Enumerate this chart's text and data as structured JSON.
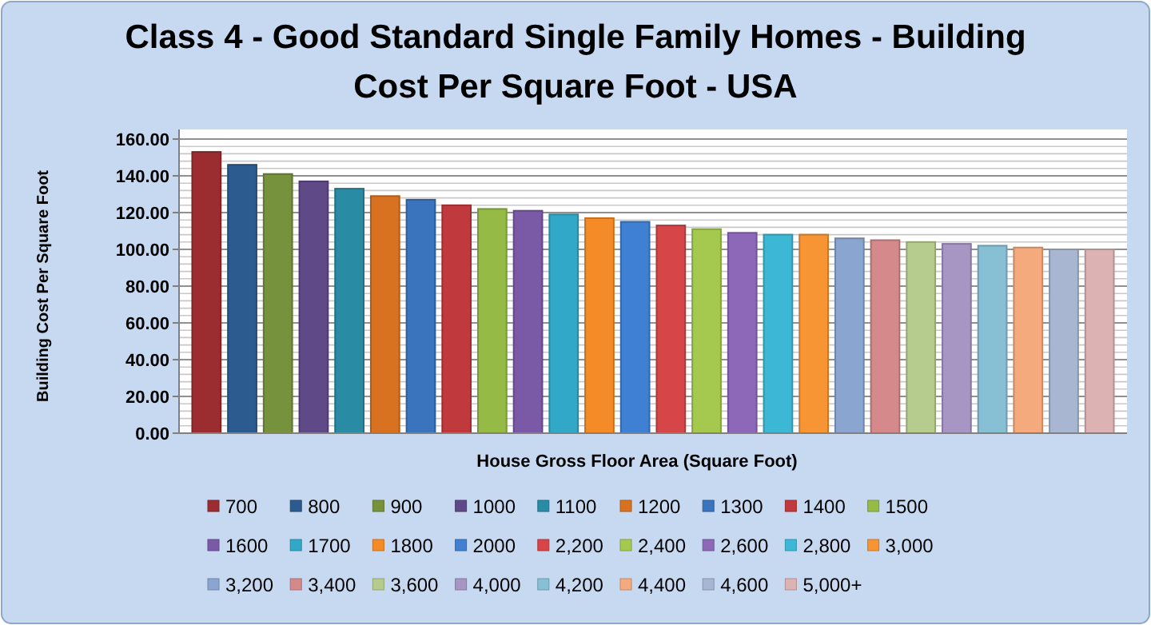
{
  "chart_data": {
    "type": "bar",
    "title": "Class 4 - Good Standard Single Family Homes  - Building Cost Per Square Foot - USA",
    "xlabel": "House Gross Floor Area (Square Foot)",
    "ylabel": "Building Cost Per Square Foot",
    "categories": [
      null,
      null,
      null,
      null,
      null,
      null,
      null,
      null,
      null,
      null,
      null,
      null,
      null,
      null,
      null,
      null,
      null,
      null,
      null,
      null,
      null,
      null,
      null,
      null,
      null,
      null
    ],
    "ylim": [
      0,
      160
    ],
    "yticks": [
      {
        "value": 0,
        "label": "0.00"
      },
      {
        "value": 20,
        "label": "20.00"
      },
      {
        "value": 40,
        "label": "40.00"
      },
      {
        "value": 60,
        "label": "60.00"
      },
      {
        "value": 80,
        "label": "80.00"
      },
      {
        "value": 100,
        "label": "100.00"
      },
      {
        "value": 120,
        "label": "120.00"
      },
      {
        "value": 140,
        "label": "140.00"
      },
      {
        "value": 160,
        "label": "160.00"
      }
    ],
    "grid": "y",
    "legend": "bottom",
    "series": [
      {
        "name": "700",
        "color": "#9b2d30",
        "values": [
          153,
          null,
          null,
          null,
          null,
          null,
          null,
          null,
          null,
          null,
          null,
          null,
          null,
          null,
          null,
          null,
          null,
          null,
          null,
          null,
          null,
          null,
          null,
          null,
          null,
          null
        ]
      },
      {
        "name": "800",
        "color": "#2c5b8f",
        "values": [
          null,
          146,
          null,
          null,
          null,
          null,
          null,
          null,
          null,
          null,
          null,
          null,
          null,
          null,
          null,
          null,
          null,
          null,
          null,
          null,
          null,
          null,
          null,
          null,
          null,
          null
        ]
      },
      {
        "name": "900",
        "color": "#76923c",
        "values": [
          null,
          null,
          141,
          null,
          null,
          null,
          null,
          null,
          null,
          null,
          null,
          null,
          null,
          null,
          null,
          null,
          null,
          null,
          null,
          null,
          null,
          null,
          null,
          null,
          null,
          null
        ]
      },
      {
        "name": "1000",
        "color": "#5f4a87",
        "values": [
          null,
          null,
          null,
          137,
          null,
          null,
          null,
          null,
          null,
          null,
          null,
          null,
          null,
          null,
          null,
          null,
          null,
          null,
          null,
          null,
          null,
          null,
          null,
          null,
          null,
          null
        ]
      },
      {
        "name": "1100",
        "color": "#2a8ba5",
        "values": [
          null,
          null,
          null,
          null,
          133,
          null,
          null,
          null,
          null,
          null,
          null,
          null,
          null,
          null,
          null,
          null,
          null,
          null,
          null,
          null,
          null,
          null,
          null,
          null,
          null,
          null
        ]
      },
      {
        "name": "1200",
        "color": "#d87220",
        "values": [
          null,
          null,
          null,
          null,
          null,
          129,
          null,
          null,
          null,
          null,
          null,
          null,
          null,
          null,
          null,
          null,
          null,
          null,
          null,
          null,
          null,
          null,
          null,
          null,
          null,
          null
        ]
      },
      {
        "name": "1300",
        "color": "#3a74bd",
        "values": [
          null,
          null,
          null,
          null,
          null,
          null,
          127,
          null,
          null,
          null,
          null,
          null,
          null,
          null,
          null,
          null,
          null,
          null,
          null,
          null,
          null,
          null,
          null,
          null,
          null,
          null
        ]
      },
      {
        "name": "1400",
        "color": "#c0393c",
        "values": [
          null,
          null,
          null,
          null,
          null,
          null,
          null,
          124,
          null,
          null,
          null,
          null,
          null,
          null,
          null,
          null,
          null,
          null,
          null,
          null,
          null,
          null,
          null,
          null,
          null,
          null
        ]
      },
      {
        "name": "1500",
        "color": "#95bb46",
        "values": [
          null,
          null,
          null,
          null,
          null,
          null,
          null,
          null,
          122,
          null,
          null,
          null,
          null,
          null,
          null,
          null,
          null,
          null,
          null,
          null,
          null,
          null,
          null,
          null,
          null,
          null
        ]
      },
      {
        "name": "1600",
        "color": "#7a5aa6",
        "values": [
          null,
          null,
          null,
          null,
          null,
          null,
          null,
          null,
          null,
          121,
          null,
          null,
          null,
          null,
          null,
          null,
          null,
          null,
          null,
          null,
          null,
          null,
          null,
          null,
          null,
          null
        ]
      },
      {
        "name": "1700",
        "color": "#31a8c8",
        "values": [
          null,
          null,
          null,
          null,
          null,
          null,
          null,
          null,
          null,
          null,
          119,
          null,
          null,
          null,
          null,
          null,
          null,
          null,
          null,
          null,
          null,
          null,
          null,
          null,
          null,
          null
        ]
      },
      {
        "name": "1800",
        "color": "#f58b26",
        "values": [
          null,
          null,
          null,
          null,
          null,
          null,
          null,
          null,
          null,
          null,
          null,
          117,
          null,
          null,
          null,
          null,
          null,
          null,
          null,
          null,
          null,
          null,
          null,
          null,
          null,
          null
        ]
      },
      {
        "name": "2000",
        "color": "#3f80d3",
        "values": [
          null,
          null,
          null,
          null,
          null,
          null,
          null,
          null,
          null,
          null,
          null,
          null,
          115,
          null,
          null,
          null,
          null,
          null,
          null,
          null,
          null,
          null,
          null,
          null,
          null,
          null
        ]
      },
      {
        "name": "2,200",
        "color": "#d64547",
        "values": [
          null,
          null,
          null,
          null,
          null,
          null,
          null,
          null,
          null,
          null,
          null,
          null,
          null,
          113,
          null,
          null,
          null,
          null,
          null,
          null,
          null,
          null,
          null,
          null,
          null,
          null
        ]
      },
      {
        "name": "2,400",
        "color": "#a5c94f",
        "values": [
          null,
          null,
          null,
          null,
          null,
          null,
          null,
          null,
          null,
          null,
          null,
          null,
          null,
          null,
          111,
          null,
          null,
          null,
          null,
          null,
          null,
          null,
          null,
          null,
          null,
          null
        ]
      },
      {
        "name": "2,600",
        "color": "#8d68b8",
        "values": [
          null,
          null,
          null,
          null,
          null,
          null,
          null,
          null,
          null,
          null,
          null,
          null,
          null,
          null,
          null,
          109,
          null,
          null,
          null,
          null,
          null,
          null,
          null,
          null,
          null,
          null
        ]
      },
      {
        "name": "2,800",
        "color": "#3cb8d6",
        "values": [
          null,
          null,
          null,
          null,
          null,
          null,
          null,
          null,
          null,
          null,
          null,
          null,
          null,
          null,
          null,
          null,
          108,
          null,
          null,
          null,
          null,
          null,
          null,
          null,
          null,
          null
        ]
      },
      {
        "name": "3,000",
        "color": "#f79534",
        "values": [
          null,
          null,
          null,
          null,
          null,
          null,
          null,
          null,
          null,
          null,
          null,
          null,
          null,
          null,
          null,
          null,
          null,
          108,
          null,
          null,
          null,
          null,
          null,
          null,
          null,
          null
        ]
      },
      {
        "name": "3,200",
        "color": "#8aa5cf",
        "values": [
          null,
          null,
          null,
          null,
          null,
          null,
          null,
          null,
          null,
          null,
          null,
          null,
          null,
          null,
          null,
          null,
          null,
          null,
          106,
          null,
          null,
          null,
          null,
          null,
          null,
          null
        ]
      },
      {
        "name": "3,400",
        "color": "#d5898b",
        "values": [
          null,
          null,
          null,
          null,
          null,
          null,
          null,
          null,
          null,
          null,
          null,
          null,
          null,
          null,
          null,
          null,
          null,
          null,
          null,
          105,
          null,
          null,
          null,
          null,
          null,
          null
        ]
      },
      {
        "name": "3,600",
        "color": "#b5cc8e",
        "values": [
          null,
          null,
          null,
          null,
          null,
          null,
          null,
          null,
          null,
          null,
          null,
          null,
          null,
          null,
          null,
          null,
          null,
          null,
          null,
          null,
          104,
          null,
          null,
          null,
          null,
          null
        ]
      },
      {
        "name": "4,000",
        "color": "#a795c3",
        "values": [
          null,
          null,
          null,
          null,
          null,
          null,
          null,
          null,
          null,
          null,
          null,
          null,
          null,
          null,
          null,
          null,
          null,
          null,
          null,
          null,
          null,
          103,
          null,
          null,
          null,
          null
        ]
      },
      {
        "name": "4,200",
        "color": "#87c0d4",
        "values": [
          null,
          null,
          null,
          null,
          null,
          null,
          null,
          null,
          null,
          null,
          null,
          null,
          null,
          null,
          null,
          null,
          null,
          null,
          null,
          null,
          null,
          null,
          102,
          null,
          null,
          null
        ]
      },
      {
        "name": "4,400",
        "color": "#f4aa7c",
        "values": [
          null,
          null,
          null,
          null,
          null,
          null,
          null,
          null,
          null,
          null,
          null,
          null,
          null,
          null,
          null,
          null,
          null,
          null,
          null,
          null,
          null,
          null,
          null,
          101,
          null,
          null
        ]
      },
      {
        "name": "4,600",
        "color": "#a9b6d2",
        "values": [
          null,
          null,
          null,
          null,
          null,
          null,
          null,
          null,
          null,
          null,
          null,
          null,
          null,
          null,
          null,
          null,
          null,
          null,
          null,
          null,
          null,
          null,
          null,
          null,
          100,
          null
        ]
      },
      {
        "name": "5,000+",
        "color": "#dcb2b2",
        "values": [
          null,
          null,
          null,
          null,
          null,
          null,
          null,
          null,
          null,
          null,
          null,
          null,
          null,
          null,
          null,
          null,
          null,
          null,
          null,
          null,
          null,
          null,
          null,
          null,
          null,
          100
        ]
      }
    ]
  }
}
